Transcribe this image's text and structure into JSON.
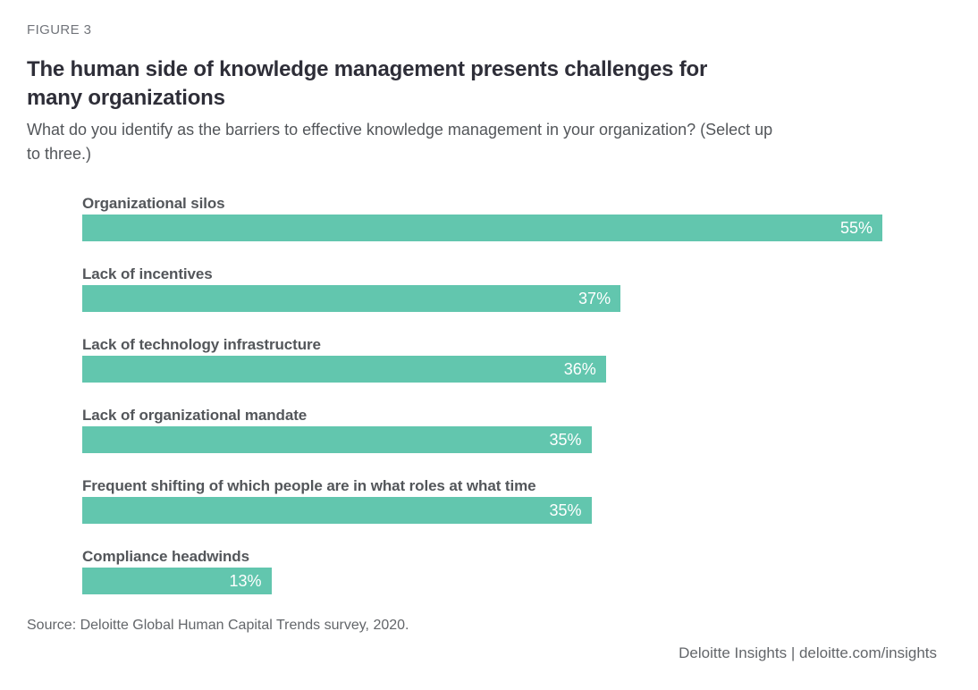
{
  "figure_label": "FIGURE 3",
  "title": "The human side of knowledge management presents challenges for many organizations",
  "subtitle": "What do you identify as the barriers to effective knowledge management in your organization? (Select up to three.)",
  "source": "Source: Deloitte Global Human Capital Trends survey, 2020.",
  "brand_footer": "Deloitte Insights | deloitte.com/insights",
  "colors": {
    "bar": "#62c6ae",
    "bar_value_text": "#ffffff",
    "title_text": "#2e2e38",
    "label_text": "#53565a",
    "muted_text": "#72757b",
    "footer_text": "#63666a"
  },
  "chart_data": {
    "type": "bar",
    "orientation": "horizontal",
    "title": "The human side of knowledge management presents challenges for many organizations",
    "xlabel": "",
    "ylabel": "",
    "categories": [
      "Organizational silos",
      "Lack of incentives",
      "Lack of technology infrastructure",
      "Lack of organizational mandate",
      "Frequent shifting of which people are in what roles at what time",
      "Compliance headwinds"
    ],
    "values": [
      55,
      37,
      36,
      35,
      35,
      13
    ],
    "value_labels": [
      "55%",
      "37%",
      "36%",
      "35%",
      "35%",
      "13%"
    ],
    "xlim": [
      0,
      55
    ],
    "grid": false,
    "legend": false,
    "value_label_position": "inside-end"
  }
}
